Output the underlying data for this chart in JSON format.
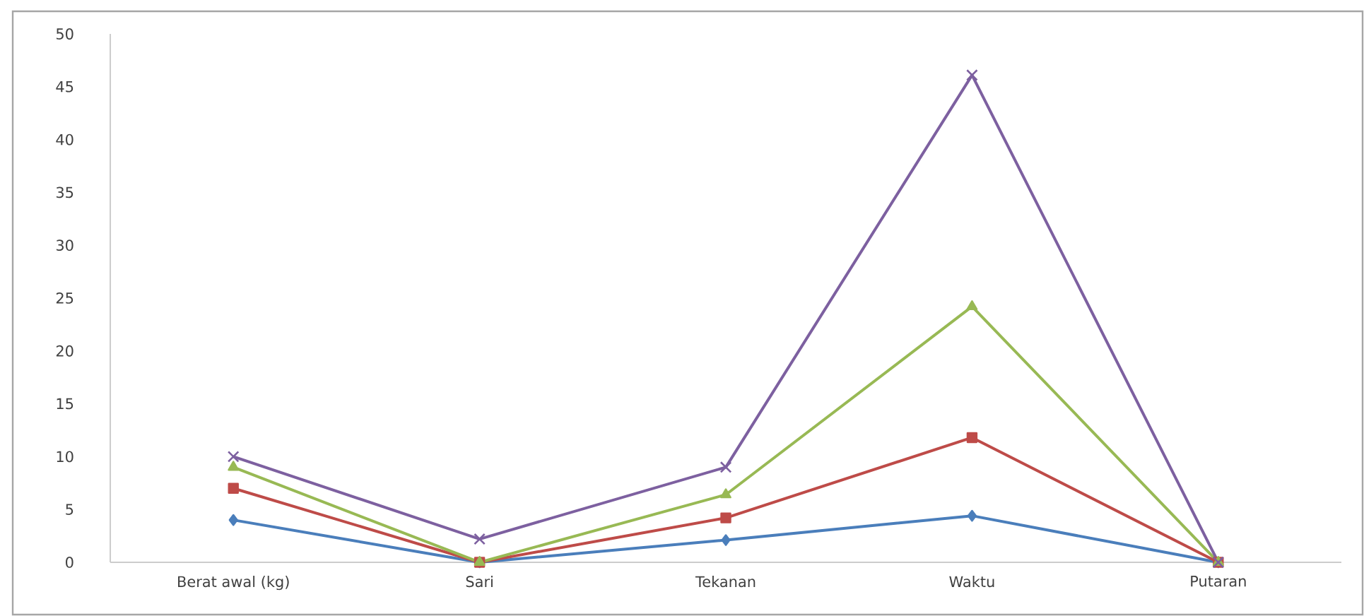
{
  "chart_data": {
    "type": "line",
    "categories": [
      "Berat awal (kg)",
      "Sari",
      "Tekanan",
      "Waktu",
      "Putaran"
    ],
    "series": [
      {
        "color": "#4a7ebb",
        "marker": "diamond",
        "values": [
          4,
          0,
          2.1,
          4.4,
          0
        ]
      },
      {
        "color": "#be4b48",
        "marker": "square",
        "values": [
          7,
          0,
          4.2,
          11.8,
          0
        ]
      },
      {
        "color": "#98b954",
        "marker": "triangle",
        "values": [
          9,
          0,
          6.4,
          24.2,
          0
        ]
      },
      {
        "color": "#7d60a0",
        "marker": "cross",
        "values": [
          10,
          2.2,
          9,
          46.1,
          0
        ]
      }
    ],
    "ylim": [
      0,
      50
    ],
    "yticks": [
      0,
      5,
      10,
      15,
      20,
      25,
      30,
      35,
      40,
      45,
      50
    ],
    "grid": false,
    "legend": false
  }
}
